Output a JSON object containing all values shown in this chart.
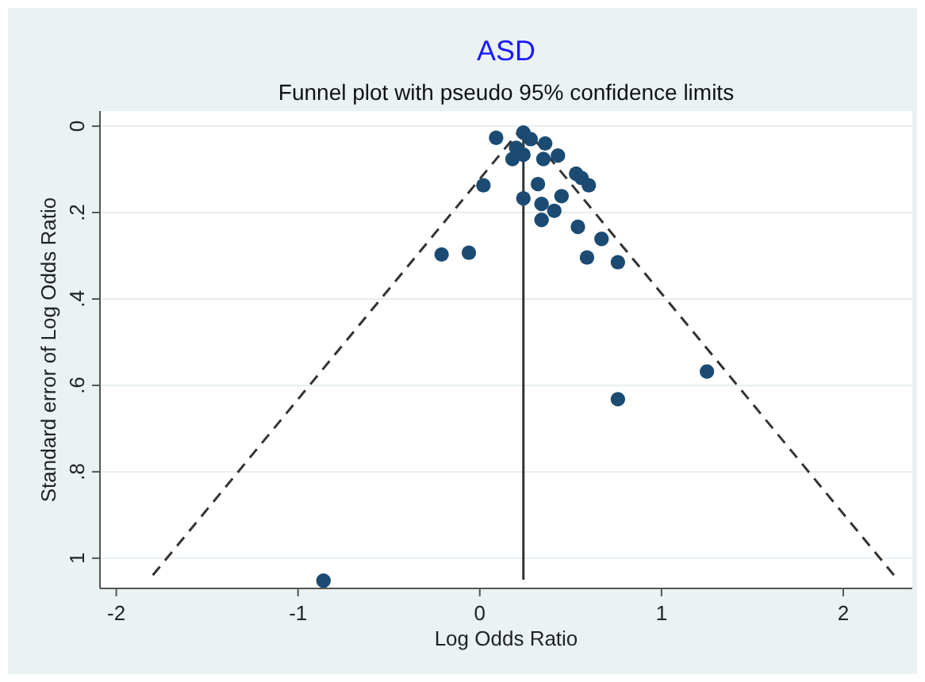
{
  "chart_data": {
    "type": "scatter",
    "title": "ASD",
    "subtitle": "Funnel plot with pseudo 95% confidence limits",
    "xlabel": "Log Odds Ratio",
    "ylabel": "Standard error of Log Odds Ratio",
    "xlim": [
      -2.09,
      2.38
    ],
    "ylim": [
      1.07,
      -0.035
    ],
    "xticks": [
      -2,
      -1,
      0,
      1,
      2
    ],
    "yticks": [
      {
        "value": 0,
        "label": "0"
      },
      {
        "value": 0.2,
        "label": ".2"
      },
      {
        "value": 0.4,
        "label": ".4"
      },
      {
        "value": 0.6,
        "label": ".6"
      },
      {
        "value": 0.8,
        "label": ".8"
      },
      {
        "value": 1,
        "label": "1"
      }
    ],
    "grid": "y",
    "series": [
      {
        "color": "#1b4b73",
        "marker": "circle",
        "x": [
          0.09,
          0.24,
          0.28,
          0.36,
          0.2,
          0.24,
          0.18,
          0.35,
          0.43,
          0.53,
          0.56,
          0.6,
          0.02,
          0.32,
          0.24,
          0.45,
          0.34,
          0.41,
          0.34,
          0.54,
          0.67,
          -0.21,
          -0.06,
          0.59,
          0.76,
          1.25,
          0.76,
          -0.86
        ],
        "values": [
          0.027,
          0.015,
          0.03,
          0.04,
          0.05,
          0.066,
          0.076,
          0.076,
          0.068,
          0.11,
          0.12,
          0.137,
          0.137,
          0.134,
          0.167,
          0.162,
          0.18,
          0.196,
          0.217,
          0.233,
          0.261,
          0.297,
          0.293,
          0.304,
          0.315,
          0.568,
          0.632,
          1.052
        ]
      },
      {
        "type": "line",
        "color": "#333333",
        "line_style": "dashed",
        "x": [
          0.24,
          -1.82
        ],
        "values": [
          0,
          1.05
        ]
      },
      {
        "type": "line",
        "color": "#333333",
        "line_style": "dashed",
        "x": [
          0.24,
          2.3
        ],
        "values": [
          0,
          1.05
        ]
      },
      {
        "type": "line",
        "color": "#333333",
        "line_style": "solid",
        "x": [
          0.24,
          0.24
        ],
        "values": [
          0,
          1.05
        ]
      }
    ]
  }
}
